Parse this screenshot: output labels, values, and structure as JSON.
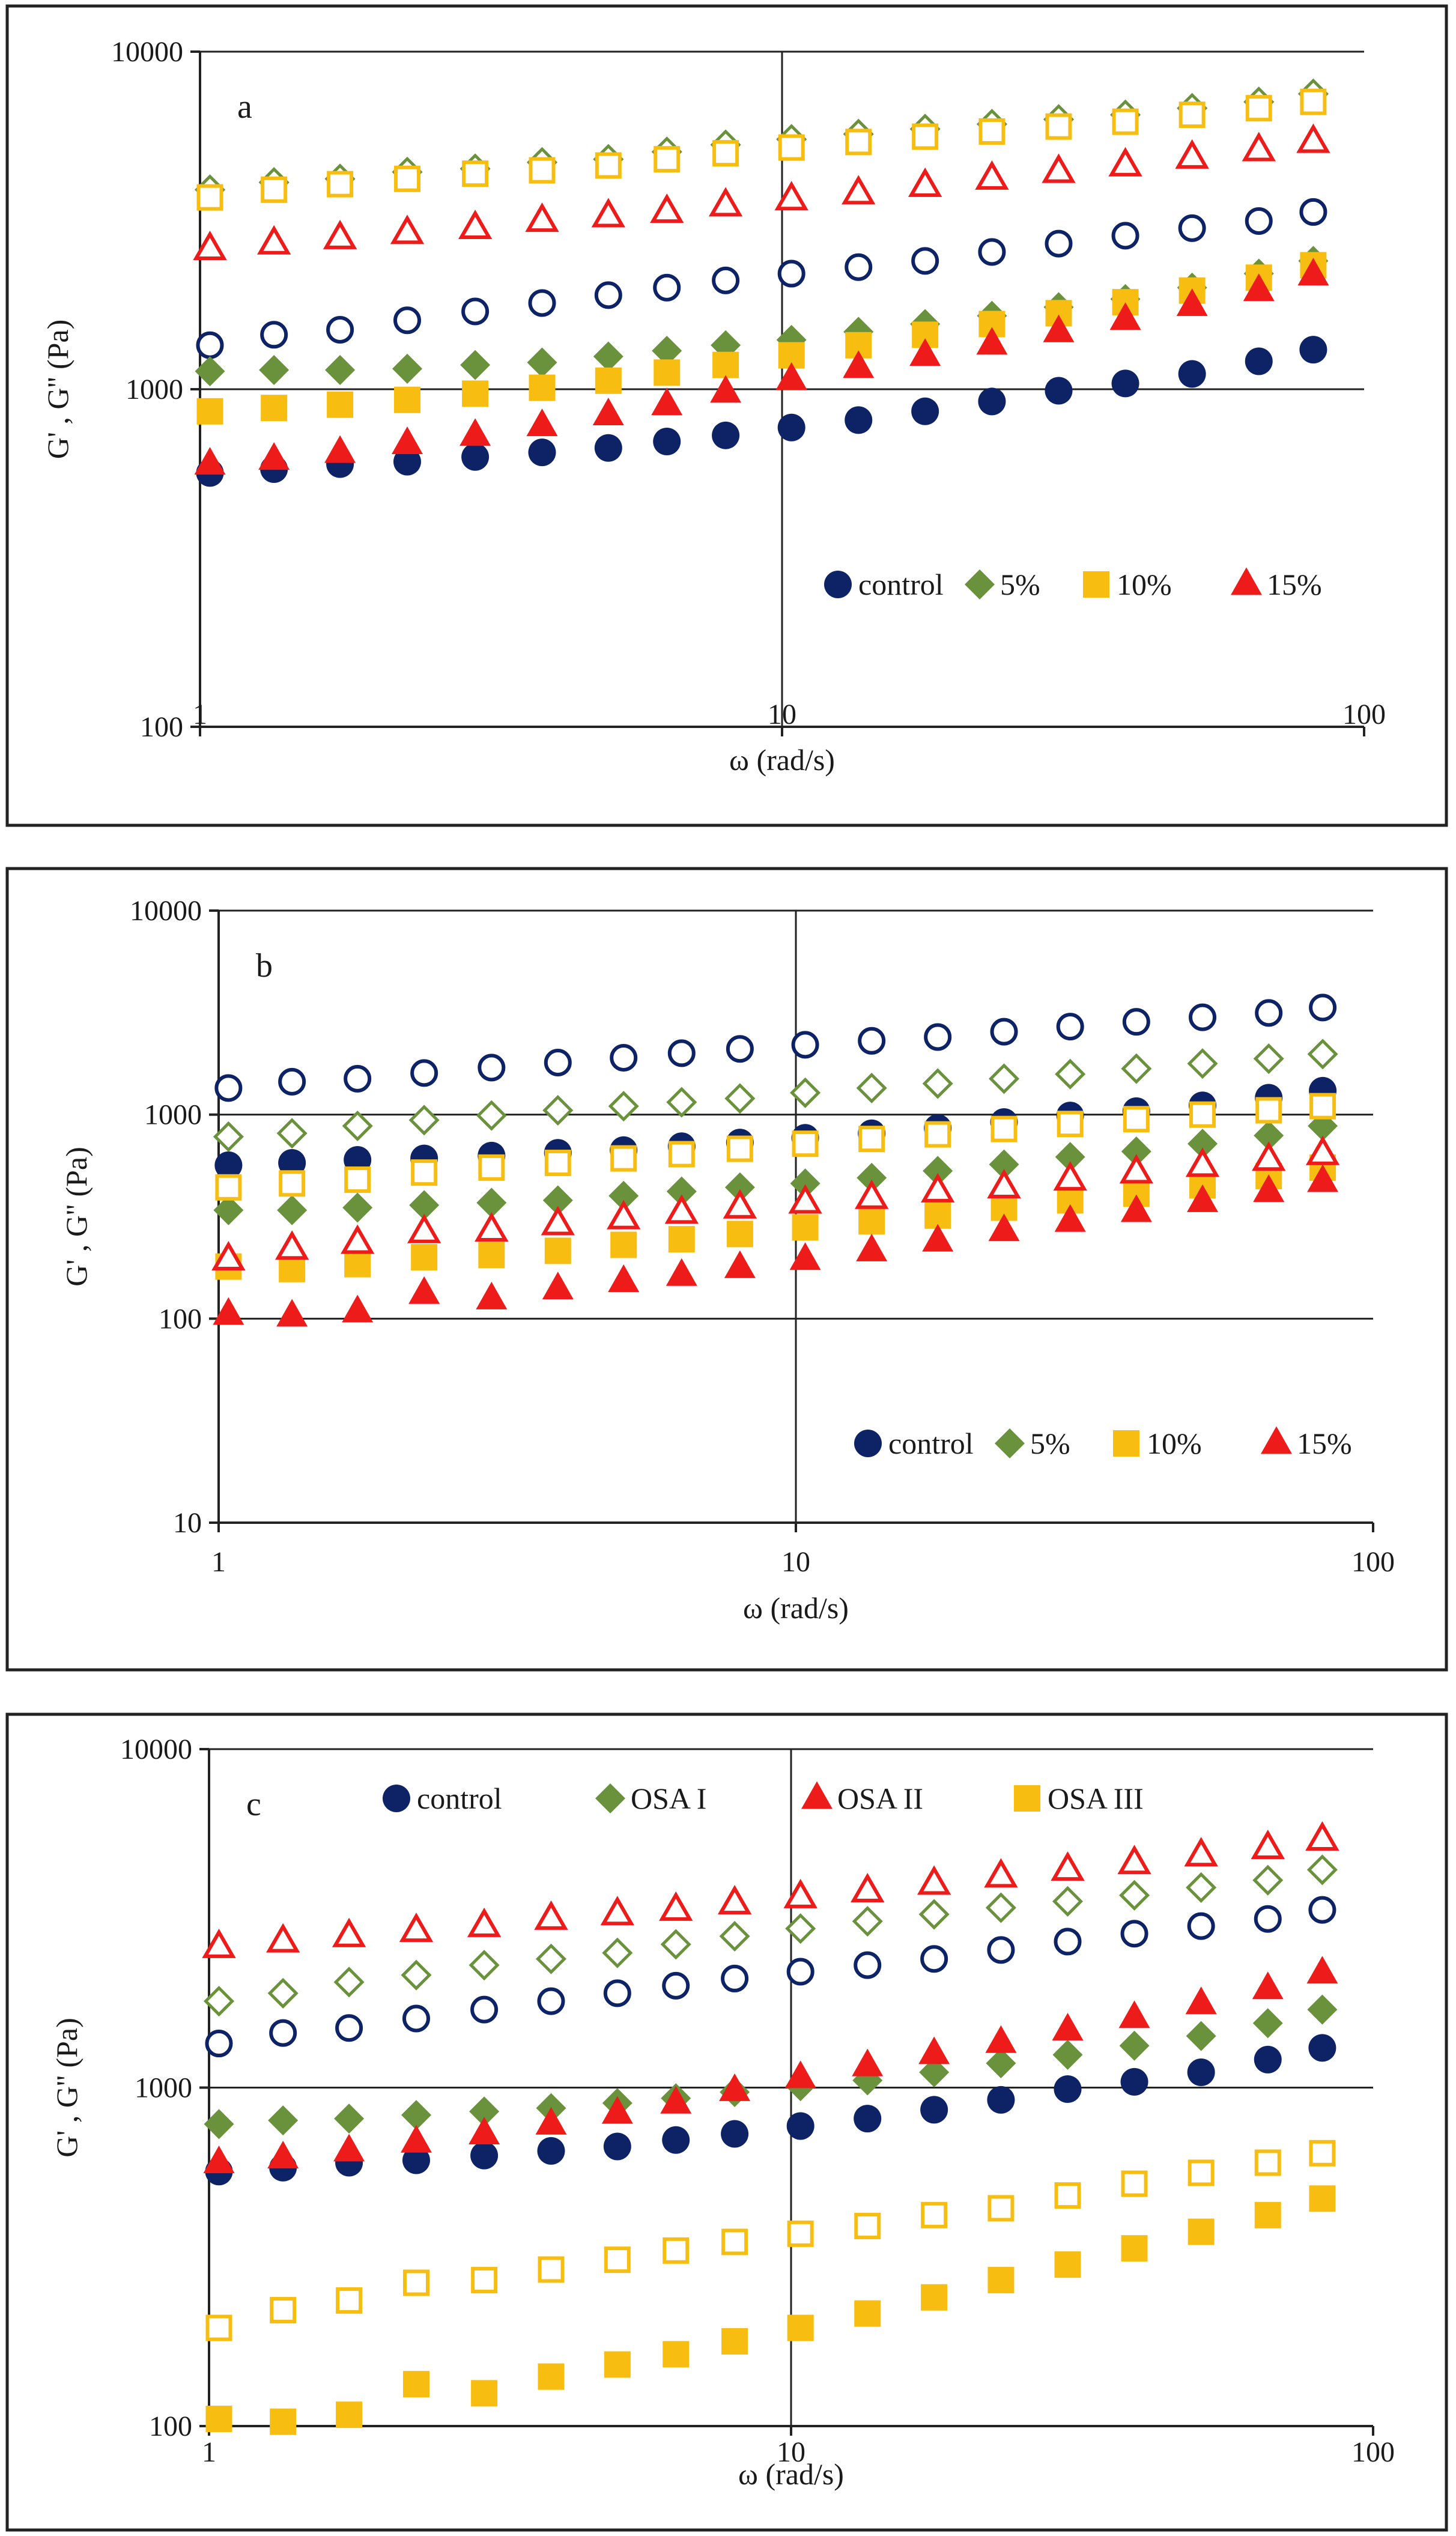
{
  "chart_data": [
    {
      "panel_label": "a",
      "type": "scatter",
      "ylabel": "G' , G'' (Pa)",
      "xlabel": "ω (rad/s)",
      "x_scale": "log",
      "y_scale": "log",
      "xlim": [
        1,
        100
      ],
      "ylim": [
        100,
        10000
      ],
      "x_ticks": [
        "1",
        "10",
        "100"
      ],
      "y_ticks": [
        "100",
        "1000",
        "10000"
      ],
      "grid": "major gridlines at 10 and 1000",
      "legend_position": "bottom-right",
      "legend": [
        {
          "label": "control",
          "marker": "circle",
          "color": "#0d2366"
        },
        {
          "label": "5%",
          "marker": "diamond",
          "color": "#6a913b"
        },
        {
          "label": "10%",
          "marker": "square",
          "color": "#f7bd10"
        },
        {
          "label": "15%",
          "marker": "triangle",
          "color": "#ee1b1b"
        }
      ],
      "x": [
        1.04,
        1.34,
        1.74,
        2.27,
        2.97,
        3.87,
        5.03,
        6.34,
        8.0,
        10.38,
        13.53,
        17.61,
        22.94,
        29.87,
        38.89,
        50.64,
        65.94,
        81.79
      ],
      "series": [
        {
          "legend_label": "control",
          "modulus": "G'",
          "fill": "hollow",
          "values": [
            1350,
            1450,
            1500,
            1600,
            1700,
            1800,
            1900,
            2000,
            2100,
            2200,
            2300,
            2400,
            2550,
            2700,
            2850,
            3000,
            3150,
            3350
          ]
        },
        {
          "legend_label": "control",
          "modulus": "G''",
          "fill": "filled",
          "values": [
            565,
            580,
            600,
            610,
            630,
            650,
            670,
            700,
            730,
            770,
            810,
            860,
            920,
            990,
            1040,
            1110,
            1210,
            1310
          ]
        },
        {
          "legend_label": "5%",
          "modulus": "G'",
          "fill": "hollow",
          "values": [
            3900,
            4100,
            4200,
            4400,
            4500,
            4700,
            4800,
            5050,
            5300,
            5500,
            5700,
            5900,
            6100,
            6300,
            6500,
            6800,
            7100,
            7500
          ]
        },
        {
          "legend_label": "5%",
          "modulus": "G''",
          "fill": "filled",
          "values": [
            1130,
            1140,
            1140,
            1150,
            1180,
            1200,
            1250,
            1300,
            1350,
            1400,
            1480,
            1560,
            1650,
            1750,
            1850,
            2000,
            2200,
            2400
          ]
        },
        {
          "legend_label": "10%",
          "modulus": "G'",
          "fill": "hollow",
          "values": [
            3700,
            3900,
            4050,
            4200,
            4350,
            4450,
            4600,
            4800,
            5000,
            5200,
            5400,
            5600,
            5800,
            6000,
            6200,
            6500,
            6800,
            7100
          ]
        },
        {
          "legend_label": "10%",
          "modulus": "G''",
          "fill": "filled",
          "values": [
            860,
            880,
            900,
            930,
            970,
            1010,
            1060,
            1120,
            1180,
            1260,
            1350,
            1450,
            1560,
            1680,
            1810,
            1960,
            2140,
            2330
          ]
        },
        {
          "legend_label": "15%",
          "modulus": "G'",
          "fill": "hollow",
          "values": [
            2600,
            2700,
            2800,
            2900,
            3000,
            3150,
            3250,
            3350,
            3500,
            3650,
            3800,
            4000,
            4200,
            4400,
            4600,
            4850,
            5100,
            5400
          ]
        },
        {
          "legend_label": "15%",
          "modulus": "G''",
          "fill": "filled",
          "values": [
            600,
            620,
            650,
            690,
            730,
            780,
            840,
            900,
            980,
            1070,
            1160,
            1260,
            1360,
            1480,
            1610,
            1770,
            1960,
            2180
          ]
        }
      ]
    },
    {
      "panel_label": "b",
      "type": "scatter",
      "ylabel": "G' , G'' (Pa)",
      "xlabel": "ω (rad/s)",
      "x_scale": "log",
      "y_scale": "log",
      "xlim": [
        1,
        100
      ],
      "ylim": [
        10,
        10000
      ],
      "x_ticks": [
        "1",
        "10",
        "100"
      ],
      "y_ticks": [
        "10",
        "100",
        "1000",
        "10000"
      ],
      "grid": "major gridlines at 10 and 100, 1000",
      "legend_position": "bottom-right",
      "legend": [
        {
          "label": "control",
          "marker": "circle",
          "color": "#0d2366"
        },
        {
          "label": "5%",
          "marker": "diamond",
          "color": "#6a913b"
        },
        {
          "label": "10%",
          "marker": "square",
          "color": "#f7bd10"
        },
        {
          "label": "15%",
          "marker": "triangle",
          "color": "#ee1b1b"
        }
      ],
      "x": [
        1.04,
        1.34,
        1.74,
        2.27,
        2.97,
        3.87,
        5.03,
        6.34,
        8.0,
        10.38,
        13.53,
        17.61,
        22.94,
        29.87,
        38.89,
        50.64,
        65.94,
        81.79
      ],
      "series": [
        {
          "legend_label": "control",
          "modulus": "G'",
          "fill": "hollow",
          "values": [
            1350,
            1450,
            1500,
            1600,
            1700,
            1800,
            1900,
            2000,
            2100,
            2200,
            2300,
            2400,
            2550,
            2700,
            2850,
            3000,
            3150,
            3350
          ]
        },
        {
          "legend_label": "control",
          "modulus": "G''",
          "fill": "filled",
          "values": [
            565,
            580,
            600,
            610,
            630,
            650,
            670,
            700,
            730,
            770,
            810,
            860,
            920,
            990,
            1040,
            1110,
            1210,
            1310
          ]
        },
        {
          "legend_label": "5%",
          "modulus": "G'",
          "fill": "hollow",
          "values": [
            780,
            810,
            880,
            940,
            990,
            1050,
            1100,
            1150,
            1200,
            1280,
            1350,
            1420,
            1500,
            1580,
            1680,
            1780,
            1880,
            1980
          ]
        },
        {
          "legend_label": "5%",
          "modulus": "G''",
          "fill": "filled",
          "values": [
            340,
            340,
            350,
            360,
            370,
            380,
            400,
            420,
            440,
            460,
            490,
            530,
            570,
            620,
            660,
            720,
            790,
            880
          ]
        },
        {
          "legend_label": "10%",
          "modulus": "G'",
          "fill": "hollow",
          "values": [
            440,
            460,
            480,
            520,
            550,
            580,
            610,
            640,
            680,
            720,
            760,
            800,
            850,
            900,
            950,
            1000,
            1050,
            1100
          ]
        },
        {
          "legend_label": "10%",
          "modulus": "G''",
          "fill": "filled",
          "values": [
            180,
            175,
            185,
            200,
            205,
            215,
            230,
            245,
            260,
            280,
            300,
            320,
            350,
            380,
            410,
            450,
            500,
            550
          ]
        },
        {
          "legend_label": "15%",
          "modulus": "G'",
          "fill": "hollow",
          "values": [
            195,
            220,
            235,
            265,
            270,
            290,
            310,
            330,
            350,
            370,
            390,
            420,
            440,
            480,
            520,
            560,
            600,
            640
          ]
        },
        {
          "legend_label": "15%",
          "modulus": "G''",
          "fill": "filled",
          "values": [
            105,
            103,
            108,
            133,
            125,
            140,
            152,
            163,
            178,
            195,
            215,
            240,
            270,
            300,
            335,
            375,
            420,
            470
          ]
        }
      ]
    },
    {
      "panel_label": "c",
      "type": "scatter",
      "ylabel": "G' , G'' (Pa)",
      "xlabel": "ω (rad/s)",
      "x_scale": "log",
      "y_scale": "log",
      "xlim": [
        1,
        100
      ],
      "ylim": [
        100,
        10000
      ],
      "x_ticks": [
        "1",
        "10",
        "100"
      ],
      "y_ticks": [
        "100",
        "1000",
        "10000"
      ],
      "grid": "major gridlines at 10 and 1000",
      "legend_position": "top",
      "legend": [
        {
          "label": "control",
          "marker": "circle",
          "color": "#0d2366"
        },
        {
          "label": "OSA I",
          "marker": "diamond",
          "color": "#6a913b"
        },
        {
          "label": "OSA II",
          "marker": "triangle",
          "color": "#ee1b1b"
        },
        {
          "label": "OSA III",
          "marker": "square",
          "color": "#f7bd10"
        }
      ],
      "x": [
        1.04,
        1.34,
        1.74,
        2.27,
        2.97,
        3.87,
        5.03,
        6.34,
        8.0,
        10.38,
        13.53,
        17.61,
        22.94,
        29.87,
        38.89,
        50.64,
        65.94,
        81.79
      ],
      "series": [
        {
          "legend_label": "control",
          "modulus": "G'",
          "fill": "hollow",
          "values": [
            1350,
            1450,
            1500,
            1600,
            1700,
            1800,
            1900,
            2000,
            2100,
            2200,
            2300,
            2400,
            2550,
            2700,
            2850,
            3000,
            3150,
            3350
          ]
        },
        {
          "legend_label": "control",
          "modulus": "G''",
          "fill": "filled",
          "values": [
            565,
            580,
            600,
            610,
            630,
            650,
            670,
            700,
            730,
            770,
            810,
            860,
            920,
            990,
            1040,
            1110,
            1210,
            1310
          ]
        },
        {
          "legend_label": "OSA I",
          "modulus": "G'",
          "fill": "hollow",
          "values": [
            1800,
            1900,
            2050,
            2150,
            2300,
            2400,
            2500,
            2650,
            2800,
            2950,
            3100,
            3250,
            3400,
            3550,
            3700,
            3900,
            4100,
            4400
          ]
        },
        {
          "legend_label": "OSA I",
          "modulus": "G''",
          "fill": "filled",
          "values": [
            780,
            800,
            810,
            830,
            850,
            870,
            900,
            930,
            970,
            1010,
            1050,
            1110,
            1180,
            1250,
            1330,
            1420,
            1550,
            1700
          ]
        },
        {
          "legend_label": "OSA II",
          "modulus": "G'",
          "fill": "hollow",
          "values": [
            2600,
            2700,
            2800,
            2900,
            3000,
            3150,
            3250,
            3350,
            3500,
            3650,
            3800,
            4000,
            4200,
            4400,
            4600,
            4850,
            5100,
            5400
          ]
        },
        {
          "legend_label": "OSA II",
          "modulus": "G''",
          "fill": "filled",
          "values": [
            600,
            620,
            650,
            690,
            730,
            780,
            840,
            900,
            980,
            1070,
            1160,
            1260,
            1360,
            1480,
            1610,
            1770,
            1960,
            2180
          ]
        },
        {
          "legend_label": "OSA III",
          "modulus": "G'",
          "fill": "hollow",
          "values": [
            195,
            220,
            235,
            265,
            270,
            290,
            310,
            330,
            350,
            370,
            390,
            420,
            440,
            480,
            520,
            560,
            600,
            640
          ]
        },
        {
          "legend_label": "OSA III",
          "modulus": "G''",
          "fill": "filled",
          "values": [
            105,
            103,
            108,
            133,
            125,
            140,
            152,
            163,
            178,
            195,
            215,
            240,
            270,
            300,
            335,
            375,
            420,
            470
          ]
        }
      ]
    }
  ]
}
